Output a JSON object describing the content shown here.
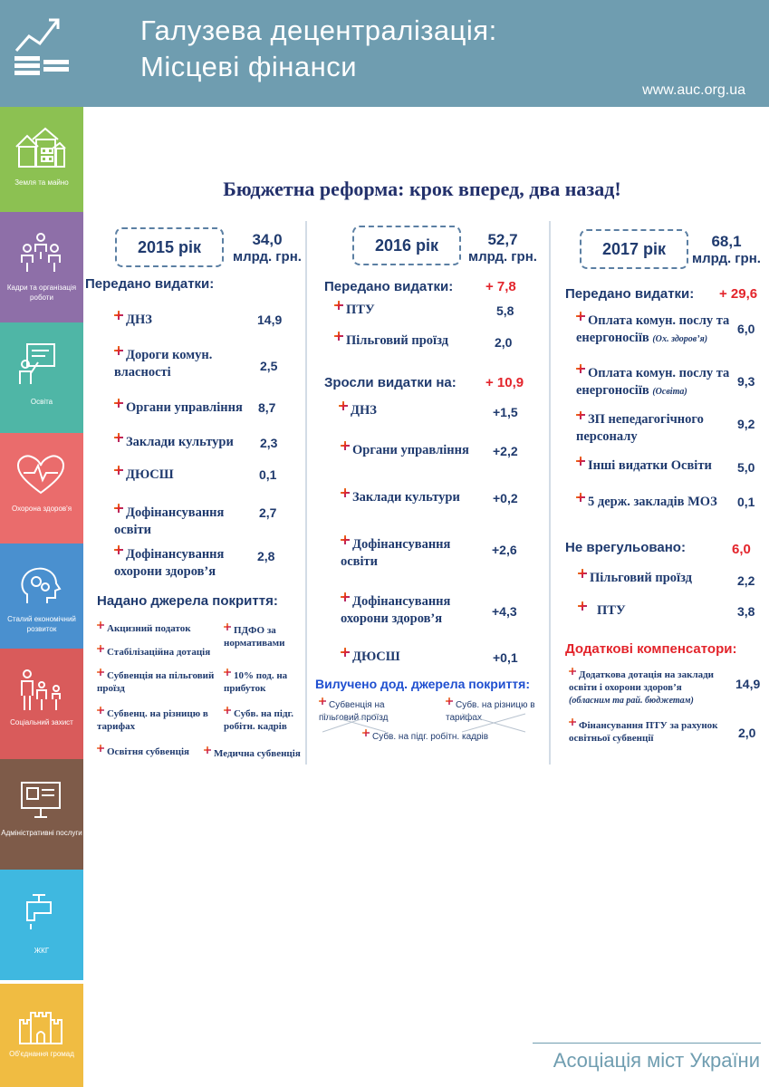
{
  "header": {
    "title_line1": "Галузева децентралізація:",
    "title_line2": "Місцеві фінанси",
    "url": "www.auc.org.ua"
  },
  "sidebar": [
    {
      "label": "Земля та майно",
      "color": "#8cc152"
    },
    {
      "label": "Кадри та організація роботи",
      "color": "#8e6fa8"
    },
    {
      "label": "Освіта",
      "color": "#4fb6a6"
    },
    {
      "label": "Охорона здоров'я",
      "color": "#ea6c6c"
    },
    {
      "label": "Сталий економічний розвиток",
      "color": "#4a90cf"
    },
    {
      "label": "Соціальний захист",
      "color": "#d95b5b"
    },
    {
      "label": "Адміністративні послуги",
      "color": "#7e5b49"
    },
    {
      "label": "ЖКГ",
      "color": "#3fb8e0"
    },
    {
      "label": "Об'єднання громад",
      "color": "#f0bc42"
    }
  ],
  "title": "Бюджетна реформа: крок вперед, два назад!",
  "col2015": {
    "year": "2015 рік",
    "amount": "34,0",
    "unit": "млрд. грн.",
    "transferred_label": "Передано видатки:",
    "items": [
      {
        "name": "ДНЗ",
        "value": "14,9"
      },
      {
        "name": "Дороги комун. власності",
        "value": "2,5"
      },
      {
        "name": "Органи управління",
        "value": "8,7"
      },
      {
        "name": "Заклади культури",
        "value": "2,3"
      },
      {
        "name": "ДЮСШ",
        "value": "0,1"
      },
      {
        "name": "Дофінансування освіти",
        "value": "2,7"
      },
      {
        "name": "Дофінансування охорони здоров’я",
        "value": "2,8"
      }
    ],
    "sources_label": "Надано джерела покриття:",
    "sources": [
      "Акцизний податок",
      "ПДФО за нормативами",
      "Стабілізаційна дотація",
      "Субвенція на пільговий проїзд",
      "10% под. на прибуток",
      "Субвенц. на різницю в тарифах",
      "Субв. на підг. робітн. кадрів",
      "Освітня субвенція",
      "Медична субвенція"
    ]
  },
  "col2016": {
    "year": "2016 рік",
    "amount": "52,7",
    "unit": "млрд. грн.",
    "transferred_label": "Передано видатки:",
    "transferred_delta": "+ 7,8",
    "transferred": [
      {
        "name": "ПТУ",
        "value": "5,8"
      },
      {
        "name": "Пільговий проїзд",
        "value": "2,0"
      }
    ],
    "increased_label": "Зросли видатки на:",
    "increased_delta": "+ 10,9",
    "increased": [
      {
        "name": "ДНЗ",
        "value": "+1,5"
      },
      {
        "name": "Органи управління",
        "value": "+2,2"
      },
      {
        "name": "Заклади культури",
        "value": "+0,2"
      },
      {
        "name": "Дофінансування освіти",
        "value": "+2,6"
      },
      {
        "name": "Дофінансування охорони здоров’я",
        "value": "+4,3"
      },
      {
        "name": "ДЮСШ",
        "value": "+0,1"
      }
    ],
    "removed_label": "Вилучено дод. джерела покриття:",
    "removed": [
      "Субвенція на пільговий проїзд",
      "Субв. на різницю в тарифах",
      "Субв. на підг. робітн. кадрів"
    ]
  },
  "col2017": {
    "year": "2017 рік",
    "amount": "68,1",
    "unit": "млрд. грн.",
    "transferred_label": "Передано видатки:",
    "transferred_delta": "+ 29,6",
    "transferred": [
      {
        "name": "Оплата комун. послу та енергоносіїв",
        "note": "(Ох. здоров’я)",
        "value": "6,0"
      },
      {
        "name": "Оплата комун. послу та енергоносіїв",
        "note": "(Освіта)",
        "value": "9,3"
      },
      {
        "name": "ЗП непедагогічного персоналу",
        "value": "9,2"
      },
      {
        "name": "Інші видатки Освіти",
        "value": "5,0"
      },
      {
        "name": "5 держ. закладів МОЗ",
        "value": "0,1"
      }
    ],
    "unsettled_label": "Не врегульовано:",
    "unsettled_value": "6,0",
    "unsettled": [
      {
        "name": "Пільговий проїзд",
        "value": "2,2"
      },
      {
        "name": "ПТУ",
        "value": "3,8"
      }
    ],
    "compensators_label": "Додаткові компенсатори:",
    "compensators": [
      {
        "name": "Додаткова дотація на заклади освіти і охорони здоров’я",
        "note": "(обласним та рай. бюджетам)",
        "value": "14,9"
      },
      {
        "name": "Фінансування ПТУ за рахунок освітньої субвенції",
        "value": "2,0"
      }
    ]
  },
  "footer": "Асоціація міст України"
}
